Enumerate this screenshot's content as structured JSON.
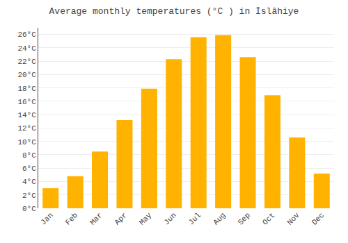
{
  "chart_data": {
    "type": "bar",
    "title": "Average monthly temperatures (°C ) in İslâhiye",
    "categories": [
      "Jan",
      "Feb",
      "Mar",
      "Apr",
      "May",
      "Jun",
      "Jul",
      "Aug",
      "Sep",
      "Oct",
      "Nov",
      "Dec"
    ],
    "values": [
      3.0,
      4.8,
      8.5,
      13.2,
      17.9,
      22.3,
      25.6,
      25.9,
      22.6,
      16.9,
      10.6,
      5.2
    ],
    "color": "#FFB300",
    "ylim": [
      0,
      27
    ],
    "yticks": [
      {
        "value": 0,
        "label": "0°C"
      },
      {
        "value": 2,
        "label": "2°C"
      },
      {
        "value": 4,
        "label": "4°C"
      },
      {
        "value": 6,
        "label": "6°C"
      },
      {
        "value": 8,
        "label": "8°C"
      },
      {
        "value": 10,
        "label": "10°C"
      },
      {
        "value": 12,
        "label": "12°C"
      },
      {
        "value": 14,
        "label": "14°C"
      },
      {
        "value": 16,
        "label": "16°C"
      },
      {
        "value": 18,
        "label": "18°C"
      },
      {
        "value": 20,
        "label": "20°C"
      },
      {
        "value": 22,
        "label": "22°C"
      },
      {
        "value": 24,
        "label": "24°C"
      },
      {
        "value": 26,
        "label": "26°C"
      }
    ],
    "grid": true
  }
}
